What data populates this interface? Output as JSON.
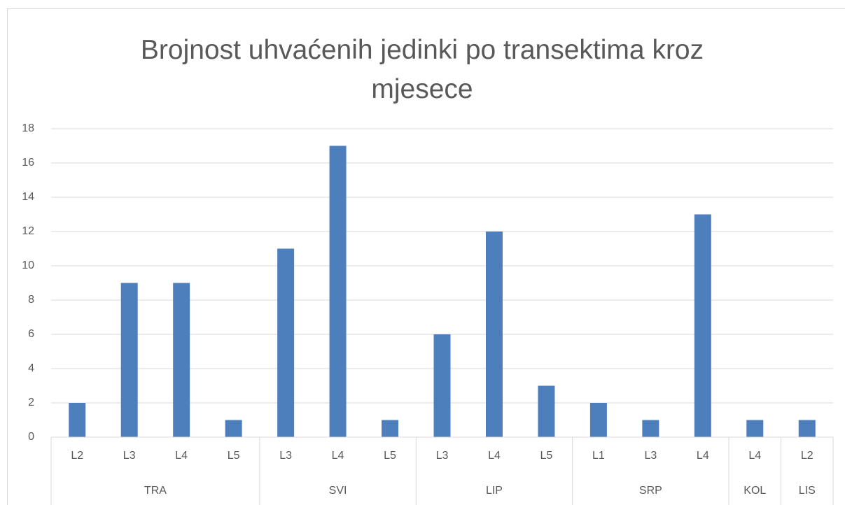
{
  "chart_data": {
    "type": "bar",
    "title": "Brojnost uhvaćenih jedinki po transektima kroz mjesece",
    "groups": [
      {
        "label": "TRA",
        "categories": [
          "L2",
          "L3",
          "L4",
          "L5"
        ],
        "values": [
          2,
          9,
          9,
          1
        ]
      },
      {
        "label": "SVI",
        "categories": [
          "L3",
          "L4",
          "L5"
        ],
        "values": [
          11,
          17,
          1
        ]
      },
      {
        "label": "LIP",
        "categories": [
          "L3",
          "L4",
          "L5"
        ],
        "values": [
          6,
          12,
          3
        ]
      },
      {
        "label": "SRP",
        "categories": [
          "L1",
          "L3",
          "L4"
        ],
        "values": [
          2,
          1,
          13
        ]
      },
      {
        "label": "KOL",
        "categories": [
          "L4"
        ],
        "values": [
          1
        ]
      },
      {
        "label": "LIS",
        "categories": [
          "L2"
        ],
        "values": [
          1
        ]
      }
    ],
    "color": "#4e7fbd",
    "ylim": [
      0,
      18
    ],
    "yticks": [
      0,
      2,
      4,
      6,
      8,
      10,
      12,
      14,
      16,
      18
    ],
    "grid": true
  }
}
